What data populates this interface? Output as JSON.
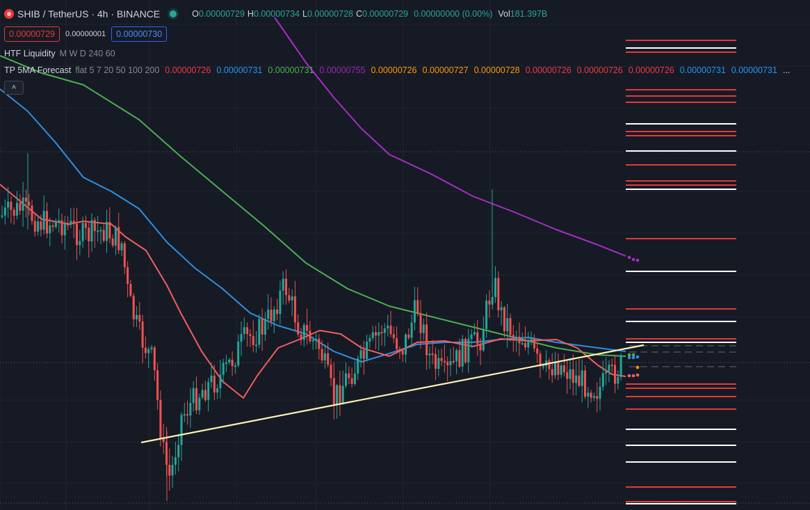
{
  "header": {
    "symbol_title": "SHIB / TetherUS · 4h · BINANCE",
    "ohlc": [
      {
        "label": "O",
        "value": "0.00000729"
      },
      {
        "label": "H",
        "value": "0.00000734"
      },
      {
        "label": "L",
        "value": "0.00000728"
      },
      {
        "label": "C",
        "value": "0.00000729"
      }
    ],
    "change": "0.00000000 (0.00%)",
    "vol_label": "Vol",
    "vol_value": "181.397B"
  },
  "trade": {
    "sell_price": "0.00000729",
    "spread": "0.00000001",
    "buy_price": "0.00000730"
  },
  "indicators": {
    "htf_name": "HTF Liquidity",
    "htf_params": "M W D 240 60",
    "forecast_name": "TP 5MA Forecast",
    "forecast_params": "flat 5 7 20 50 100 200",
    "forecast_values": [
      {
        "v": "0.00000726",
        "color": "#f23645"
      },
      {
        "v": "0.00000731",
        "color": "#2196f3"
      },
      {
        "v": "0.00000731",
        "color": "#4caf50"
      },
      {
        "v": "0.00000755",
        "color": "#9c27b0"
      },
      {
        "v": "0.00000726",
        "color": "#ff9800"
      },
      {
        "v": "0.00000727",
        "color": "#ff9800"
      },
      {
        "v": "0.00000728",
        "color": "#ff9800"
      },
      {
        "v": "0.00000726",
        "color": "#f23645"
      },
      {
        "v": "0.00000726",
        "color": "#f23645"
      },
      {
        "v": "0.00000726",
        "color": "#f23645"
      },
      {
        "v": "0.00000731",
        "color": "#2196f3"
      },
      {
        "v": "0.00000731",
        "color": "#2196f3"
      }
    ],
    "more": "..."
  },
  "collapse_icon": "chevron-up-icon",
  "colors": {
    "up": "#26a69a",
    "down": "#ef5350",
    "ma_red": "#f25f5c",
    "ma_blue": "#2f8fe0",
    "ma_green": "#4caf50",
    "ma_purple": "#a62ec4",
    "trendline": "#fff2b5",
    "liq_red": "#e23a3a",
    "liq_white": "#ffffff"
  }
}
